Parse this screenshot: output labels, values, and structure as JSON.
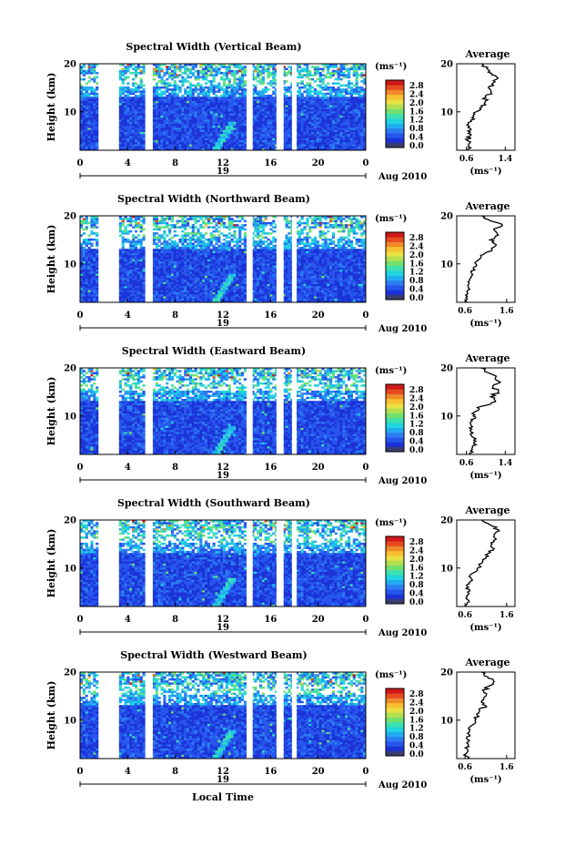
{
  "figure": {
    "xlabel": "Local Time",
    "date_label": "Aug 2010",
    "day_label": "19",
    "avg_title": "Average",
    "unit_label": "(ms⁻¹)",
    "ylabel": "Height (km)",
    "colors": [
      "#3b3b6e",
      "#1b33d6",
      "#2655ee",
      "#2b7ef2",
      "#20aef0",
      "#20d4e0",
      "#3ce0b0",
      "#70e070",
      "#b0e050",
      "#e8e040",
      "#f6c030",
      "#f08a28",
      "#e84a20",
      "#d01818"
    ]
  },
  "chart_data": [
    {
      "type": "heatmap",
      "title": "Spectral Width (Vertical Beam)",
      "xlabel": "Local Time",
      "ylabel": "Height (km)",
      "xlim": [
        0,
        24
      ],
      "ylim": [
        2,
        20
      ],
      "xticks": [
        "0",
        "4",
        "8",
        "12",
        "16",
        "20",
        "0"
      ],
      "yticks": [
        "10",
        "20"
      ],
      "gaps": [
        [
          1.6,
          3.2
        ],
        [
          5.5,
          6.0
        ],
        [
          14.0,
          14.5
        ],
        [
          16.5,
          17.1
        ],
        [
          17.8,
          18.2
        ]
      ],
      "colorbar_ticks": [
        "0.0",
        "0.4",
        "0.8",
        "1.2",
        "1.6",
        "2.0",
        "2.4",
        "2.8"
      ],
      "profile": {
        "title": "Average",
        "xlabel": "(ms⁻¹)",
        "xticks": [
          "0.6",
          "1.4"
        ],
        "xlim": [
          0.4,
          1.6
        ],
        "yticks": [
          "10",
          "20"
        ],
        "heights": [
          2,
          3,
          4,
          5,
          6,
          7,
          8,
          9,
          10,
          11,
          12,
          13,
          14,
          15,
          16,
          17,
          18,
          19,
          20
        ],
        "values": [
          0.62,
          0.65,
          0.62,
          0.68,
          0.63,
          0.66,
          0.7,
          0.75,
          0.8,
          0.92,
          0.98,
          1.0,
          1.1,
          1.05,
          1.15,
          1.25,
          1.12,
          1.02,
          0.92
        ]
      }
    },
    {
      "type": "heatmap",
      "title": "Spectral Width (Northward Beam)",
      "xlabel": "Local Time",
      "ylabel": "Height (km)",
      "xlim": [
        0,
        24
      ],
      "ylim": [
        2,
        20
      ],
      "xticks": [
        "0",
        "4",
        "8",
        "12",
        "16",
        "20",
        "0"
      ],
      "yticks": [
        "10",
        "20"
      ],
      "gaps": [
        [
          1.6,
          3.2
        ],
        [
          5.5,
          6.0
        ],
        [
          14.0,
          14.5
        ],
        [
          16.5,
          17.1
        ],
        [
          17.8,
          18.2
        ]
      ],
      "colorbar_ticks": [
        "0.0",
        "0.4",
        "0.8",
        "1.2",
        "1.6",
        "2.0",
        "2.4",
        "2.8"
      ],
      "profile": {
        "title": "Average",
        "xlabel": "(ms⁻¹)",
        "xticks": [
          "0.6",
          "1.6"
        ],
        "xlim": [
          0.4,
          1.8
        ],
        "yticks": [
          "10",
          "20"
        ],
        "heights": [
          2,
          3,
          4,
          5,
          6,
          7,
          8,
          9,
          10,
          11,
          12,
          13,
          14,
          15,
          16,
          17,
          18,
          19,
          20
        ],
        "values": [
          0.65,
          0.62,
          0.66,
          0.68,
          0.7,
          0.72,
          0.76,
          0.8,
          0.86,
          0.95,
          1.05,
          1.25,
          1.35,
          1.2,
          1.4,
          1.3,
          1.5,
          1.2,
          1.0
        ]
      }
    },
    {
      "type": "heatmap",
      "title": "Spectral Width (Eastward Beam)",
      "xlabel": "Local Time",
      "ylabel": "Height (km)",
      "xlim": [
        0,
        24
      ],
      "ylim": [
        2,
        20
      ],
      "xticks": [
        "0",
        "4",
        "8",
        "12",
        "16",
        "20",
        "0"
      ],
      "yticks": [
        "10",
        "20"
      ],
      "gaps": [
        [
          1.6,
          3.2
        ],
        [
          5.5,
          6.0
        ],
        [
          14.0,
          14.5
        ],
        [
          16.5,
          17.1
        ],
        [
          17.8,
          18.2
        ]
      ],
      "colorbar_ticks": [
        "0.0",
        "0.4",
        "0.8",
        "1.2",
        "1.6",
        "2.0",
        "2.4",
        "2.8"
      ],
      "profile": {
        "title": "Average",
        "xlabel": "(ms⁻¹)",
        "xticks": [
          "0.6",
          "1.4"
        ],
        "xlim": [
          0.4,
          1.6
        ],
        "yticks": [
          "10",
          "20"
        ],
        "heights": [
          2,
          3,
          4,
          5,
          6,
          7,
          8,
          9,
          10,
          11,
          12,
          13,
          14,
          15,
          16,
          17,
          18,
          19,
          20
        ],
        "values": [
          0.68,
          0.72,
          0.8,
          0.75,
          0.7,
          0.68,
          0.7,
          0.72,
          0.74,
          0.8,
          0.9,
          1.2,
          1.1,
          1.25,
          1.15,
          1.3,
          1.2,
          1.05,
          0.9
        ]
      }
    },
    {
      "type": "heatmap",
      "title": "Spectral Width (Southward Beam)",
      "xlabel": "Local Time",
      "ylabel": "Height (km)",
      "xlim": [
        0,
        24
      ],
      "ylim": [
        2,
        20
      ],
      "xticks": [
        "0",
        "4",
        "8",
        "12",
        "16",
        "20",
        "0"
      ],
      "yticks": [
        "10",
        "20"
      ],
      "gaps": [
        [
          1.6,
          3.2
        ],
        [
          5.5,
          6.0
        ],
        [
          14.0,
          14.5
        ],
        [
          16.5,
          17.1
        ],
        [
          17.8,
          18.2
        ]
      ],
      "colorbar_ticks": [
        "0.0",
        "0.4",
        "0.8",
        "1.2",
        "1.6",
        "2.0",
        "2.4",
        "2.8"
      ],
      "profile": {
        "title": "Average",
        "xlabel": "(ms⁻¹)",
        "xticks": [
          "0.6",
          "1.6"
        ],
        "xlim": [
          0.4,
          1.8
        ],
        "yticks": [
          "10",
          "20"
        ],
        "heights": [
          2,
          3,
          4,
          5,
          6,
          7,
          8,
          9,
          10,
          11,
          12,
          13,
          14,
          15,
          16,
          17,
          18,
          19,
          20
        ],
        "values": [
          0.62,
          0.7,
          0.65,
          0.66,
          0.68,
          0.7,
          0.74,
          0.8,
          0.9,
          1.0,
          1.1,
          1.15,
          1.3,
          1.25,
          1.35,
          1.3,
          1.4,
          1.2,
          1.0
        ]
      }
    },
    {
      "type": "heatmap",
      "title": "Spectral Width (Westward Beam)",
      "xlabel": "Local Time",
      "ylabel": "Height (km)",
      "xlim": [
        0,
        24
      ],
      "ylim": [
        2,
        20
      ],
      "xticks": [
        "0",
        "4",
        "8",
        "12",
        "16",
        "20",
        "0"
      ],
      "yticks": [
        "10",
        "20"
      ],
      "gaps": [
        [
          1.6,
          3.2
        ],
        [
          5.5,
          6.0
        ],
        [
          14.0,
          14.5
        ],
        [
          16.5,
          17.1
        ],
        [
          17.8,
          18.2
        ]
      ],
      "colorbar_ticks": [
        "0.0",
        "0.4",
        "0.8",
        "1.2",
        "1.6",
        "2.0",
        "2.4",
        "2.8"
      ],
      "profile": {
        "title": "Average",
        "xlabel": "(ms⁻¹)",
        "xticks": [
          "0.6",
          "1.6"
        ],
        "xlim": [
          0.4,
          1.8
        ],
        "yticks": [
          "10",
          "20"
        ],
        "heights": [
          2,
          3,
          4,
          5,
          6,
          7,
          8,
          9,
          10,
          11,
          12,
          13,
          14,
          15,
          16,
          17,
          18,
          19,
          20
        ],
        "values": [
          0.66,
          0.62,
          0.65,
          0.68,
          0.66,
          0.7,
          0.72,
          0.78,
          0.84,
          0.9,
          0.95,
          1.1,
          1.0,
          1.1,
          1.05,
          1.15,
          1.3,
          1.15,
          1.0
        ]
      }
    }
  ]
}
